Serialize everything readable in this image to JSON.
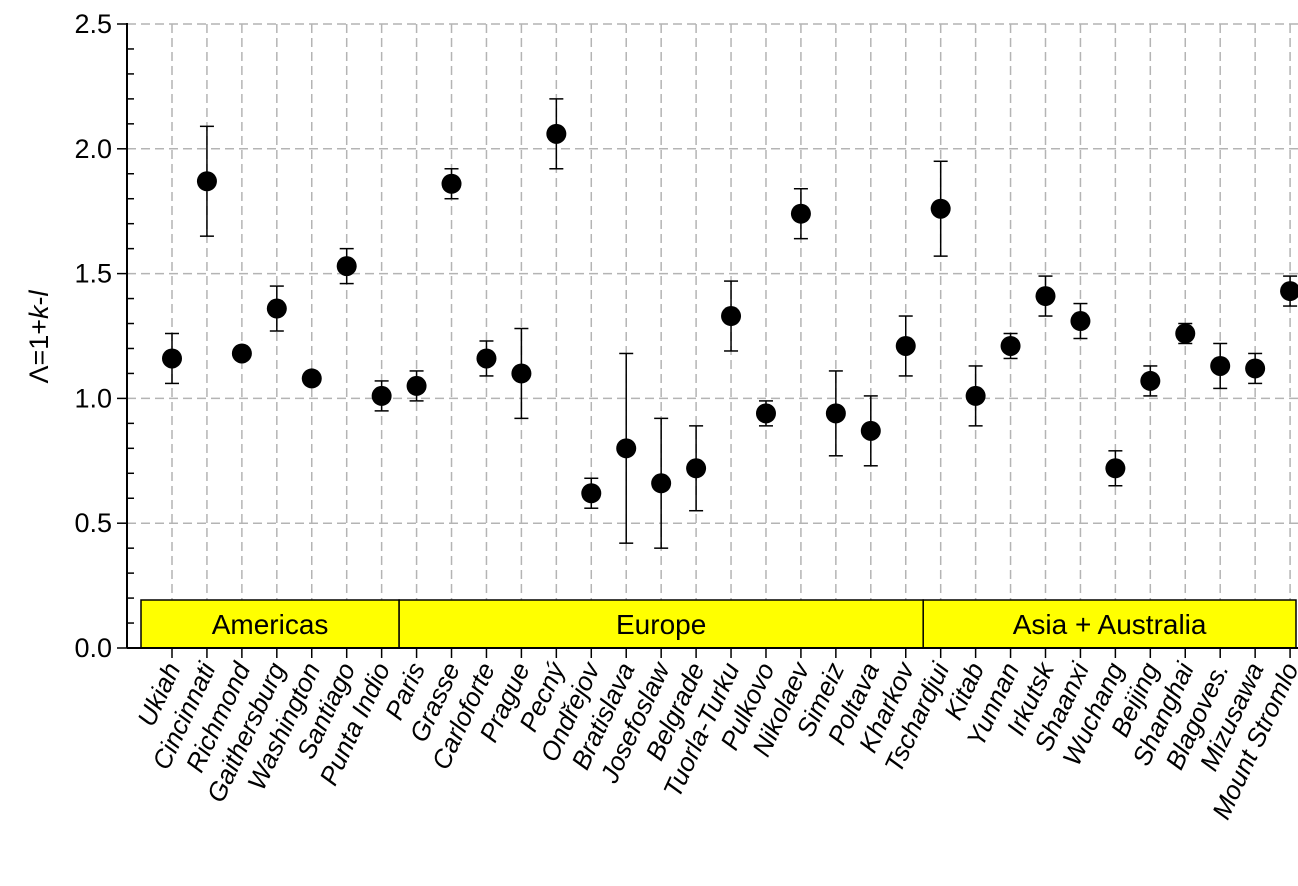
{
  "chart_data": {
    "type": "scatter",
    "ylabel": "Λ=1+k-l",
    "ylabel_parts": [
      "Λ=1+",
      "k",
      "-",
      "l"
    ],
    "ylim": [
      0.0,
      2.5
    ],
    "yticks": [
      "0.0",
      "0.5",
      "1.0",
      "1.5",
      "2.0",
      "2.5"
    ],
    "grid": true,
    "categories": [
      "Ukiah",
      "Cincinnati",
      "Richmond",
      "Gaithersburg",
      "Washington",
      "Santiago",
      "Punta Indio",
      "Paris",
      "Grasse",
      "Carloforte",
      "Prague",
      "Pecný",
      "Ondřejov",
      "Bratislava",
      "Josefoslaw",
      "Belgrade",
      "Tuorla-Turku",
      "Pulkovo",
      "Nikolaev",
      "Simeiz",
      "Poltava",
      "Kharkov",
      "Tschardjui",
      "Kitab",
      "Yunnan",
      "Irkutsk",
      "Shaanxi",
      "Wuchang",
      "Beijing",
      "Shanghai",
      "Blagoves.",
      "Mizusawa",
      "Mount Stromlo"
    ],
    "values": [
      1.16,
      1.87,
      1.18,
      1.36,
      1.08,
      1.53,
      1.01,
      1.05,
      1.86,
      1.16,
      1.1,
      2.06,
      0.62,
      0.8,
      0.66,
      0.72,
      1.33,
      0.94,
      1.74,
      0.94,
      0.87,
      1.21,
      1.76,
      1.01,
      1.21,
      1.41,
      1.31,
      0.72,
      1.07,
      1.26,
      1.13,
      1.12,
      1.43
    ],
    "errors": [
      0.1,
      0.22,
      0.0,
      0.09,
      0.0,
      0.07,
      0.06,
      0.06,
      0.06,
      0.07,
      0.18,
      0.14,
      0.06,
      0.38,
      0.26,
      0.17,
      0.14,
      0.05,
      0.1,
      0.17,
      0.14,
      0.12,
      0.19,
      0.12,
      0.05,
      0.08,
      0.07,
      0.07,
      0.06,
      0.04,
      0.09,
      0.06,
      0.06
    ],
    "regions": [
      {
        "name": "Americas",
        "first": 0,
        "last": 6
      },
      {
        "name": "Europe",
        "first": 7,
        "last": 21
      },
      {
        "name": "Asia + Australia",
        "first": 22,
        "last": 32
      }
    ],
    "region_color": "#ffff00",
    "marker_color": "#000000",
    "grid_color": "#b4b4b4"
  }
}
